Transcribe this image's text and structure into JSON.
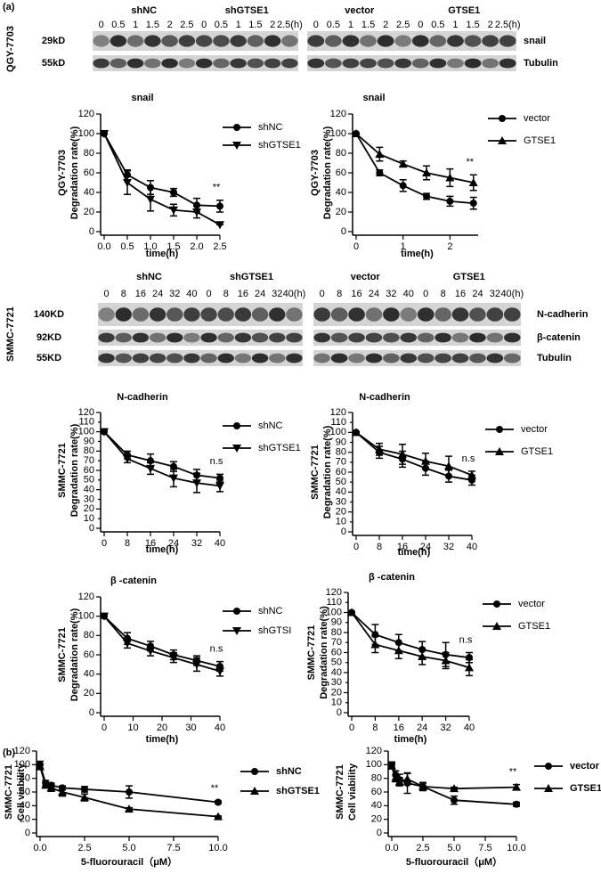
{
  "panel_labels": [
    "(a)",
    "(b)"
  ],
  "blots": [
    {
      "groups": [
        "shNC",
        "shGTSE1",
        "vector",
        "GTSE1"
      ],
      "lanes_left": [
        "0",
        "0.5",
        "1",
        "1.5",
        "2",
        "2.5",
        "0",
        "0.5",
        "1",
        "1.5",
        "2",
        "2.5(h)"
      ],
      "lanes_right": [
        "0",
        "0.5",
        "1",
        "1.5",
        "2",
        "2.5",
        "0",
        "0.5",
        "1",
        "1.5",
        "2",
        "2.5(h)"
      ],
      "rows": [
        {
          "size": "29kD",
          "protein": "snail"
        },
        {
          "size": "55kD",
          "protein": "Tubulin"
        }
      ],
      "cell_line": "QGY-7703"
    },
    {
      "groups": [
        "shNC",
        "shGTSE1",
        "vector",
        "GTSE1"
      ],
      "lanes_left": [
        "0",
        "8",
        "16",
        "24",
        "32",
        "40",
        "0",
        "8",
        "16",
        "24",
        "32",
        "40(h)"
      ],
      "lanes_right": [
        "0",
        "8",
        "16",
        "24",
        "32",
        "40",
        "0",
        "8",
        "16",
        "24",
        "32",
        "40(h)"
      ],
      "rows": [
        {
          "size": "140KD",
          "protein": "N-cadherin"
        },
        {
          "size": "92KD",
          "protein": "β-catenin"
        },
        {
          "size": "55KD",
          "protein": "Tubulin"
        }
      ],
      "cell_line": "SMMC-7721"
    }
  ],
  "chart_data": [
    {
      "type": "line",
      "title": "snail",
      "xlabel": "time(h)",
      "ylabel": "Degradation rate(%)",
      "ylabel_line": "QGY-7703",
      "x": [
        0,
        0.5,
        1,
        1.5,
        2,
        2.5
      ],
      "xlim": [
        0,
        2.5
      ],
      "xticks": [
        {
          "value": 0,
          "label": "0.0"
        },
        0.5,
        {
          "value": 1,
          "label": "1.0"
        },
        1.5,
        {
          "value": 2,
          "label": "2.0"
        },
        2.5
      ],
      "ylim": [
        0,
        120
      ],
      "yticks": [
        0,
        20,
        40,
        60,
        80,
        100,
        120
      ],
      "annotation": "**",
      "series": [
        {
          "name": "shNC",
          "color": "#000000",
          "marker": "circle",
          "values": [
            100,
            58,
            45,
            40,
            27,
            26
          ],
          "errors": [
            0,
            5,
            7,
            4,
            7,
            6
          ]
        },
        {
          "name": "shGTSE1",
          "color": "#000000",
          "marker": "triangle-down",
          "values": [
            100,
            50,
            33,
            22,
            20,
            7
          ],
          "errors": [
            0,
            12,
            12,
            6,
            6,
            0
          ]
        }
      ]
    },
    {
      "type": "line",
      "title": "snail",
      "xlabel": "time(h)",
      "ylabel": "Degradation rate(%)",
      "ylabel_line": "QGY-7703",
      "x": [
        0,
        0.5,
        1,
        1.5,
        2,
        2.5
      ],
      "xlim": [
        0,
        2.6
      ],
      "xticks": [
        0,
        1,
        2
      ],
      "ylim": [
        0,
        120
      ],
      "yticks": [
        0,
        20,
        40,
        60,
        80,
        100,
        120
      ],
      "annotation": "**",
      "series": [
        {
          "name": "vector",
          "color": "#000000",
          "marker": "circle",
          "values": [
            100,
            60,
            47,
            36,
            31,
            29
          ],
          "errors": [
            0,
            3,
            6,
            3,
            5,
            6
          ]
        },
        {
          "name": "GTSE1",
          "color": "#000000",
          "marker": "triangle",
          "values": [
            100,
            79,
            69,
            60,
            55,
            50
          ],
          "errors": [
            0,
            7,
            3,
            7,
            9,
            8
          ]
        }
      ]
    },
    {
      "type": "line",
      "title": "N-cadherin",
      "xlabel": "time(h)",
      "ylabel": "Degradation rate(%)",
      "ylabel_line": "SMMC-7721",
      "x": [
        0,
        8,
        16,
        24,
        32,
        40
      ],
      "xlim": [
        0,
        40
      ],
      "xticks": [
        0,
        8,
        16,
        24,
        32,
        40
      ],
      "ylim": [
        0,
        120
      ],
      "yticks": [
        0,
        10,
        20,
        30,
        40,
        50,
        60,
        70,
        80,
        90,
        100,
        110,
        120
      ],
      "annotation": "n.s",
      "series": [
        {
          "name": "shNC",
          "color": "#000000",
          "marker": "circle",
          "values": [
            100,
            76,
            70,
            64,
            55,
            52
          ],
          "errors": [
            0,
            4,
            7,
            5,
            6,
            4
          ]
        },
        {
          "name": "shGTSE1",
          "color": "#000000",
          "marker": "triangle-down",
          "values": [
            100,
            72,
            62,
            52,
            47,
            44
          ],
          "errors": [
            0,
            4,
            6,
            9,
            10,
            6
          ]
        }
      ]
    },
    {
      "type": "line",
      "title": "N-cadherin",
      "xlabel": "time(h)",
      "ylabel": "Degradation rate(%)",
      "ylabel_line": "SMMC-7721",
      "x": [
        0,
        8,
        16,
        24,
        32,
        40
      ],
      "xlim": [
        0,
        40
      ],
      "xticks": [
        0,
        8,
        16,
        24,
        32,
        40
      ],
      "ylim": [
        0,
        120
      ],
      "yticks": [
        0,
        10,
        20,
        30,
        40,
        50,
        60,
        70,
        80,
        90,
        100,
        110,
        120
      ],
      "annotation": "n.s",
      "series": [
        {
          "name": "vector",
          "color": "#000000",
          "marker": "circle",
          "values": [
            100,
            80,
            73,
            64,
            56,
            52
          ],
          "errors": [
            0,
            6,
            8,
            7,
            6,
            5
          ]
        },
        {
          "name": "GTSE1",
          "color": "#000000",
          "marker": "triangle",
          "values": [
            100,
            83,
            78,
            71,
            66,
            57
          ],
          "errors": [
            0,
            6,
            10,
            8,
            10,
            4
          ]
        }
      ]
    },
    {
      "type": "line",
      "title": "β -catenin",
      "xlabel": "time(h)",
      "ylabel": "Degradation rate(%)",
      "ylabel_line": "SMMC-7721",
      "x": [
        0,
        8,
        16,
        24,
        32,
        40
      ],
      "xlim": [
        0,
        40
      ],
      "xticks": [
        0,
        10,
        20,
        30,
        40
      ],
      "ylim": [
        0,
        120
      ],
      "yticks": [
        0,
        20,
        40,
        60,
        80,
        100,
        120
      ],
      "annotation": "n.s",
      "series": [
        {
          "name": "shNC",
          "color": "#000000",
          "marker": "circle",
          "values": [
            100,
            77,
            69,
            60,
            54,
            48
          ],
          "errors": [
            0,
            6,
            5,
            5,
            5,
            5
          ]
        },
        {
          "name": "shGTSI",
          "color": "#000000",
          "marker": "triangle-down",
          "values": [
            100,
            72,
            64,
            57,
            50,
            43
          ],
          "errors": [
            0,
            5,
            5,
            5,
            7,
            5
          ]
        }
      ]
    },
    {
      "type": "line",
      "title": "β -catenin",
      "xlabel": "time(h)",
      "ylabel": "Degradation rate(%)",
      "ylabel_line": "SMMC-7721",
      "x": [
        0,
        8,
        16,
        24,
        32,
        40
      ],
      "xlim": [
        0,
        40
      ],
      "xticks": [
        0,
        8,
        16,
        24,
        32,
        40
      ],
      "ylim": [
        0,
        120
      ],
      "yticks": [
        0,
        10,
        20,
        30,
        40,
        50,
        60,
        70,
        80,
        90,
        100,
        110,
        120
      ],
      "annotation": "n.s",
      "series": [
        {
          "name": "vector",
          "color": "#000000",
          "marker": "circle",
          "values": [
            100,
            78,
            70,
            63,
            58,
            55
          ],
          "errors": [
            0,
            10,
            8,
            8,
            12,
            5
          ]
        },
        {
          "name": "GTSE1",
          "color": "#000000",
          "marker": "triangle",
          "values": [
            100,
            68,
            62,
            56,
            52,
            45
          ],
          "errors": [
            0,
            8,
            8,
            8,
            8,
            8
          ]
        }
      ]
    },
    {
      "type": "line",
      "xlabel": "5-fluorouracil（μM）",
      "ylabel": "Cell viability",
      "ylabel_line": "SMMC-7721",
      "x": [
        0,
        0.3125,
        0.625,
        1.25,
        2.5,
        5,
        10
      ],
      "xlim": [
        0,
        10
      ],
      "xticks": [
        {
          "value": 0,
          "label": "0.0"
        },
        2.5,
        {
          "value": 5,
          "label": "5.0"
        },
        7.5,
        {
          "value": 10,
          "label": "10.0"
        }
      ],
      "ylim": [
        0,
        120
      ],
      "yticks": [
        0,
        20,
        40,
        60,
        80,
        100,
        120
      ],
      "annotation": "**",
      "series": [
        {
          "name": "shNC",
          "color": "#000000",
          "marker": "circle",
          "values": [
            100,
            73,
            70,
            66,
            64,
            60,
            45
          ],
          "errors": [
            5,
            4,
            3,
            3,
            4,
            9,
            2
          ]
        },
        {
          "name": "shGTSE1",
          "color": "#000000",
          "marker": "triangle",
          "values": [
            97,
            70,
            66,
            60,
            52,
            35,
            24
          ],
          "errors": [
            4,
            4,
            5,
            6,
            5,
            2,
            1
          ]
        }
      ]
    },
    {
      "type": "line",
      "xlabel": "5-fluorouracil（μM）",
      "ylabel": "Cell viability",
      "ylabel_line": "SMMC-7721",
      "x": [
        0,
        0.3125,
        0.625,
        1.25,
        2.5,
        5,
        10
      ],
      "xlim": [
        0,
        10
      ],
      "xticks": [
        {
          "value": 0,
          "label": "0.0"
        },
        2.5,
        {
          "value": 5,
          "label": "5.0"
        },
        7.5,
        {
          "value": 10,
          "label": "10.0"
        }
      ],
      "ylim": [
        0,
        120
      ],
      "yticks": [
        0,
        20,
        40,
        60,
        80,
        100,
        120
      ],
      "annotation": "**",
      "series": [
        {
          "name": "vector",
          "color": "#000000",
          "marker": "circle",
          "values": [
            100,
            85,
            78,
            73,
            68,
            48,
            42
          ],
          "errors": [
            4,
            6,
            8,
            15,
            5,
            6,
            3
          ]
        },
        {
          "name": "GTSE1",
          "color": "#000000",
          "marker": "triangle",
          "values": [
            98,
            80,
            75,
            79,
            68,
            65,
            67
          ],
          "errors": [
            4,
            5,
            6,
            8,
            6,
            2,
            4
          ]
        }
      ]
    }
  ]
}
